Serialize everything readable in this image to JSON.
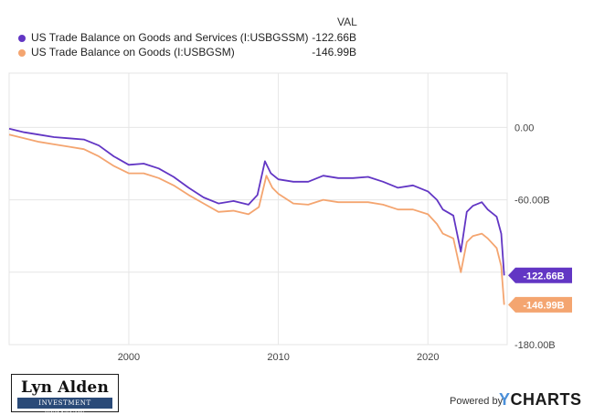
{
  "legend": {
    "value_header": "VAL",
    "items": [
      {
        "name": "US Trade Balance on Goods and Services (I:USBGSSM)",
        "value": "-122.66B",
        "color": "#6236c4"
      },
      {
        "name": "US Trade Balance on Goods (I:USBGSM)",
        "value": "-146.99B",
        "color": "#f4a570"
      }
    ]
  },
  "chart_data": {
    "type": "line",
    "xlim": [
      1992,
      2025.3
    ],
    "ylim": [
      -180,
      45
    ],
    "x_ticks": [
      2000,
      2010,
      2020
    ],
    "x_tick_labels": [
      "2000",
      "2010",
      "2020"
    ],
    "y_ticks": [
      0,
      -60,
      -120,
      -180
    ],
    "y_tick_labels": [
      "0.00",
      "-60.00B",
      "-120.00B",
      "-180.00B"
    ],
    "grid": true,
    "series": [
      {
        "name": "US Trade Balance on Goods and Services (I:USBGSSM)",
        "color": "#6236c4",
        "end_label": "-122.66B",
        "points": [
          [
            1992,
            -1
          ],
          [
            1993,
            -4
          ],
          [
            1994,
            -6
          ],
          [
            1995,
            -8
          ],
          [
            1996,
            -9
          ],
          [
            1997,
            -10
          ],
          [
            1998,
            -15
          ],
          [
            1999,
            -24
          ],
          [
            2000,
            -31
          ],
          [
            2001,
            -30
          ],
          [
            2002,
            -34
          ],
          [
            2003,
            -41
          ],
          [
            2004,
            -50
          ],
          [
            2005,
            -58
          ],
          [
            2006,
            -63
          ],
          [
            2007,
            -61
          ],
          [
            2008,
            -64
          ],
          [
            2008.6,
            -56
          ],
          [
            2009.1,
            -28
          ],
          [
            2009.5,
            -38
          ],
          [
            2010,
            -43
          ],
          [
            2011,
            -45
          ],
          [
            2012,
            -45
          ],
          [
            2013,
            -40
          ],
          [
            2014,
            -42
          ],
          [
            2015,
            -42
          ],
          [
            2016,
            -41
          ],
          [
            2017,
            -45
          ],
          [
            2018,
            -50
          ],
          [
            2019,
            -48
          ],
          [
            2020,
            -53
          ],
          [
            2020.6,
            -60
          ],
          [
            2021,
            -68
          ],
          [
            2021.7,
            -73
          ],
          [
            2022.2,
            -103
          ],
          [
            2022.6,
            -70
          ],
          [
            2023,
            -65
          ],
          [
            2023.6,
            -62
          ],
          [
            2024,
            -68
          ],
          [
            2024.6,
            -74
          ],
          [
            2024.9,
            -88
          ],
          [
            2025.1,
            -122.66
          ]
        ]
      },
      {
        "name": "US Trade Balance on Goods (I:USBGSM)",
        "color": "#f4a570",
        "end_label": "-146.99B",
        "points": [
          [
            1992,
            -6
          ],
          [
            1993,
            -9
          ],
          [
            1994,
            -12
          ],
          [
            1995,
            -14
          ],
          [
            1996,
            -16
          ],
          [
            1997,
            -18
          ],
          [
            1998,
            -24
          ],
          [
            1999,
            -32
          ],
          [
            2000,
            -38
          ],
          [
            2001,
            -38
          ],
          [
            2002,
            -42
          ],
          [
            2003,
            -48
          ],
          [
            2004,
            -56
          ],
          [
            2005,
            -63
          ],
          [
            2006,
            -70
          ],
          [
            2007,
            -69
          ],
          [
            2008,
            -72
          ],
          [
            2008.7,
            -66
          ],
          [
            2009.2,
            -40
          ],
          [
            2009.6,
            -50
          ],
          [
            2010,
            -55
          ],
          [
            2011,
            -63
          ],
          [
            2012,
            -64
          ],
          [
            2013,
            -60
          ],
          [
            2014,
            -62
          ],
          [
            2015,
            -62
          ],
          [
            2016,
            -62
          ],
          [
            2017,
            -64
          ],
          [
            2018,
            -68
          ],
          [
            2019,
            -68
          ],
          [
            2020,
            -72
          ],
          [
            2020.6,
            -80
          ],
          [
            2021,
            -88
          ],
          [
            2021.7,
            -92
          ],
          [
            2022.2,
            -120
          ],
          [
            2022.6,
            -95
          ],
          [
            2023,
            -90
          ],
          [
            2023.6,
            -88
          ],
          [
            2024,
            -92
          ],
          [
            2024.6,
            -100
          ],
          [
            2024.9,
            -115
          ],
          [
            2025.1,
            -146.99
          ]
        ]
      }
    ]
  },
  "footer": {
    "logo_name": "Lyn Alden",
    "logo_tagline": "INVESTMENT STRATEGY",
    "powered_by": "Powered by",
    "brand_mark": "Y",
    "brand_rest": "CHARTS"
  }
}
